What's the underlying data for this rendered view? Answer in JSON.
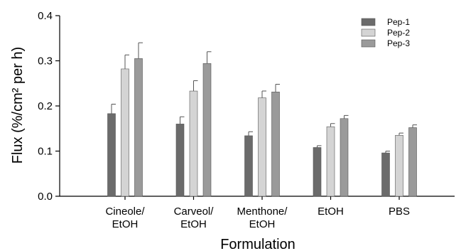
{
  "chart_data": {
    "type": "bar",
    "xlabel": "Formulation",
    "ylabel": "Flux (%/cm² per h)",
    "ylim": [
      0,
      0.4
    ],
    "yticks": [
      "0.0",
      "0.1",
      "0.2",
      "0.3",
      "0.4"
    ],
    "categories": [
      [
        "Cineole/",
        "EtOH"
      ],
      [
        "Carveol/",
        "EtOH"
      ],
      [
        "Menthone/",
        "EtOH"
      ],
      [
        "EtOH"
      ],
      [
        "PBS"
      ]
    ],
    "series": [
      {
        "name": "Pep-1",
        "color": "#6b6b6b",
        "values": [
          0.183,
          0.16,
          0.134,
          0.108,
          0.096
        ],
        "errors": [
          0.021,
          0.016,
          0.009,
          0.004,
          0.004
        ]
      },
      {
        "name": "Pep-2",
        "color": "#d4d4d4",
        "values": [
          0.282,
          0.233,
          0.218,
          0.154,
          0.135
        ],
        "errors": [
          0.031,
          0.023,
          0.015,
          0.007,
          0.005
        ]
      },
      {
        "name": "Pep-3",
        "color": "#9a9a9a",
        "values": [
          0.305,
          0.294,
          0.231,
          0.172,
          0.152
        ],
        "errors": [
          0.035,
          0.026,
          0.017,
          0.007,
          0.006
        ]
      }
    ],
    "legend_position": "top-right",
    "grid": false
  }
}
